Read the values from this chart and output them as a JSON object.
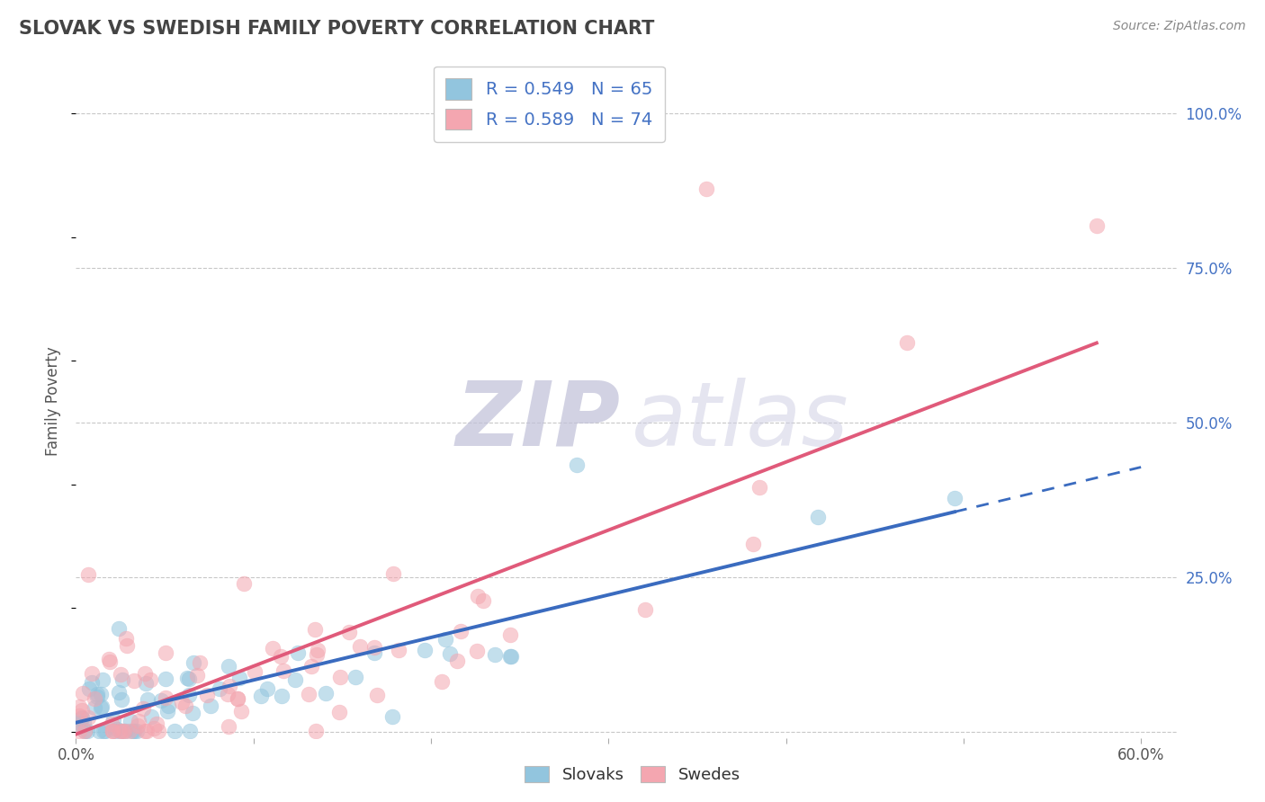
{
  "title": "SLOVAK VS SWEDISH FAMILY POVERTY CORRELATION CHART",
  "source_text": "Source: ZipAtlas.com",
  "ylabel": "Family Poverty",
  "xlim": [
    0.0,
    0.62
  ],
  "ylim": [
    -0.01,
    1.08
  ],
  "ytick_positions": [
    0.0,
    0.25,
    0.5,
    0.75,
    1.0
  ],
  "ytick_labels": [
    "",
    "25.0%",
    "50.0%",
    "75.0%",
    "100.0%"
  ],
  "slovak_R": 0.549,
  "slovak_N": 65,
  "swedish_R": 0.589,
  "swedish_N": 74,
  "slovak_color": "#92c5de",
  "swedish_color": "#f4a6b0",
  "slovak_line_color": "#3a6bbf",
  "swedish_line_color": "#e05a7a",
  "background_color": "#ffffff",
  "grid_color": "#c8c8c8",
  "legend_R_N_color": "#4472c4",
  "watermark_zip_color": "#c0c0d8",
  "watermark_atlas_color": "#d0d0e4"
}
